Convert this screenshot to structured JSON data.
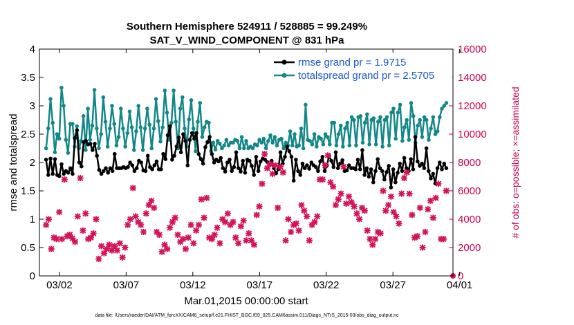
{
  "chart_data": {
    "type": "line",
    "title": "Southern Hemisphere 524911 / 528885 = 99.249%",
    "subtitle": "SAT_V_WIND_COMPONENT @ 831 hPa",
    "xlabel": "Mar.01,2015 00:00:00 start",
    "ylabel": "rmse and totalspread",
    "ylabel_right": "# of obs: o=possible; ×=assimilated",
    "footnote": "data file: /Users/raeder/DAI/ATM_forcXX/CAM6_setup/f.e21.FHIST_BGC.f09_025.CAM6assim.011/Diags_NTrS_2015-03/obs_diag_output.nc",
    "xlim": [
      0.5,
      31.5
    ],
    "ylim": [
      0,
      4
    ],
    "ylim_right": [
      0,
      16000
    ],
    "x_ticks": [
      2,
      7,
      12,
      17,
      22,
      27,
      32
    ],
    "x_tick_labels": [
      "03/02",
      "03/07",
      "03/12",
      "03/17",
      "03/22",
      "03/27",
      "04/01"
    ],
    "y_ticks": [
      0,
      0.5,
      1,
      1.5,
      2,
      2.5,
      3,
      3.5,
      4
    ],
    "y_tick_labels": [
      "0",
      "0.5",
      "1",
      "1.5",
      "2",
      "2.5",
      "3",
      "3.5",
      "4"
    ],
    "y_right_ticks": [
      0,
      2000,
      4000,
      6000,
      8000,
      10000,
      12000,
      14000,
      16000
    ],
    "y_right_tick_labels": [
      "0",
      "2000",
      "4000",
      "6000",
      "8000",
      "10000",
      "12000",
      "14000",
      "16000"
    ],
    "legend_position": "top-right",
    "series": [
      {
        "name": "rmse grand pr = 1.9715",
        "color": "#000000",
        "marker": "circle",
        "values": [
          2.05,
          1.78,
          2.07,
          1.8,
          2.06,
          1.78,
          1.76,
          1.97,
          1.8,
          1.85,
          1.82,
          1.9,
          1.8,
          2.43,
          2.57,
          2.0,
          1.93,
          2.36,
          2.38,
          2.32,
          2.33,
          2.22,
          2.33,
          2.12,
          1.87,
          1.8,
          1.85,
          1.9,
          1.82,
          1.9,
          1.85,
          2.15,
          1.9,
          1.9,
          1.9,
          1.92,
          1.9,
          1.92,
          2.0,
          1.95,
          1.85,
          1.9,
          2.03,
          2.0,
          1.86,
          1.85,
          2.12,
          1.92,
          1.88,
          1.95,
          2.02,
          1.88,
          1.88,
          2.15,
          2.06,
          2.48,
          2.64,
          2.05,
          2.12,
          2.28,
          2.44,
          2.18,
          2.5,
          2.38,
          1.95,
          2.4,
          2.52,
          2.42,
          2.52,
          2.15,
          2.06,
          1.98,
          2.27,
          2.36,
          2.45,
          2.15,
          2.0,
          2.05,
          2.02,
          2.08,
          1.9,
          1.84,
          2.0,
          2.05,
          1.85,
          1.92,
          2.18,
          1.9,
          1.84,
          2.03,
          1.82,
          2.05,
          2.03,
          1.94,
          1.78,
          2.1,
          1.85,
          2.02,
          2.07,
          2.05,
          2.01,
          1.95,
          2.03,
          1.9,
          1.81,
          1.88,
          2.18,
          1.98,
          2.1,
          2.28,
          2.2,
          2.1,
          1.68,
          2.05,
          1.85,
          1.78,
          1.98,
          1.9,
          1.95,
          1.89,
          2.0,
          1.95,
          1.92,
          1.85,
          2.02,
          2.1,
          1.85,
          1.95,
          2.12,
          2.03,
          1.92,
          2.18,
          1.9,
          1.98,
          2.04,
          1.85,
          1.86,
          1.95,
          1.9,
          1.9,
          1.88,
          2.05,
          1.88,
          2.22,
          1.78,
          1.9,
          1.75,
          1.88,
          1.65,
          1.85,
          2.06,
          1.9,
          1.85,
          1.7,
          1.83,
          1.94,
          1.56,
          1.88,
          1.65,
          1.82,
          1.98,
          1.85,
          2.08,
          1.9,
          1.85,
          2.06,
          1.88,
          2.45,
          2.02,
          1.94,
          1.98,
          1.9,
          2.25,
          1.85,
          1.72,
          1.8,
          1.63,
          1.9,
          2.0,
          1.88,
          1.98,
          1.9
        ]
      },
      {
        "name": "totalspread grand pr = 2.5705",
        "color": "#138787",
        "marker": "circle",
        "values": [
          2.25,
          2.6,
          3.12,
          2.7,
          2.18,
          2.5,
          2.42,
          3.32,
          3.0,
          2.4,
          2.17,
          2.68,
          2.68,
          2.28,
          2.64,
          2.25,
          2.38,
          2.82,
          2.22,
          2.95,
          2.4,
          2.65,
          3.28,
          2.6,
          2.25,
          2.5,
          3.15,
          2.72,
          2.28,
          2.6,
          3.0,
          2.68,
          2.3,
          2.45,
          2.95,
          2.6,
          2.28,
          2.52,
          2.9,
          2.62,
          2.22,
          2.55,
          3.0,
          2.62,
          2.22,
          2.6,
          2.95,
          2.67,
          2.25,
          2.6,
          3.12,
          2.73,
          2.37,
          2.62,
          3.27,
          2.88,
          2.4,
          2.7,
          3.27,
          2.72,
          2.25,
          2.95,
          3.15,
          2.6,
          2.28,
          2.76,
          3.1,
          2.6,
          2.2,
          2.72,
          3.05,
          2.45,
          2.62,
          2.72,
          2.7,
          2.2,
          2.35,
          2.23,
          2.38,
          2.33,
          2.25,
          2.3,
          2.4,
          2.3,
          2.35,
          2.35,
          2.4,
          2.38,
          2.25,
          2.45,
          2.25,
          2.38,
          2.25,
          2.28,
          2.25,
          2.32,
          2.3,
          2.4,
          2.35,
          2.42,
          2.25,
          2.38,
          2.48,
          2.35,
          2.45,
          2.3,
          2.4,
          2.42,
          2.25,
          2.35,
          2.3,
          2.55,
          2.3,
          2.5,
          2.28,
          2.3,
          2.6,
          2.25,
          3.02,
          2.4,
          2.38,
          2.32,
          2.5,
          2.28,
          2.45,
          2.42,
          2.32,
          2.5,
          2.45,
          2.32,
          2.7,
          2.7,
          2.3,
          2.5,
          2.65,
          2.28,
          2.6,
          2.7,
          2.3,
          2.8,
          2.75,
          2.3,
          2.8,
          2.82,
          2.35,
          2.7,
          2.85,
          2.32,
          2.75,
          2.78,
          2.32,
          2.72,
          2.8,
          2.28,
          2.75,
          2.8,
          2.3,
          2.88,
          2.95,
          2.42,
          2.88,
          3.02,
          2.38,
          2.62,
          2.75,
          2.4,
          3.05,
          2.82,
          2.35,
          2.65,
          2.75,
          2.45,
          2.8,
          2.75,
          2.4,
          2.6,
          2.8,
          2.5,
          2.55,
          2.8,
          2.95,
          3.0,
          3.05
        ]
      }
    ],
    "obs_possible_description": "o=possible",
    "obs_assimilated": {
      "name": "assimilated",
      "color": "#d4145a",
      "marker": "x",
      "values": [
        3600,
        4000,
        1900,
        2700,
        2600,
        4500,
        2600,
        6800,
        2800,
        2900,
        2650,
        2400,
        4200,
        6900,
        3200,
        4400,
        2600,
        2700,
        3000,
        4000,
        1200,
        2100,
        1600,
        1900,
        2200,
        1800,
        2100,
        1800,
        2300,
        1300,
        2000,
        3600,
        4000,
        6200,
        4200,
        3800,
        3600,
        3100,
        4400,
        5000,
        5300,
        4800,
        3100,
        2900,
        1700,
        2200,
        1900,
        3400,
        3800,
        4100,
        2900,
        2400,
        2600,
        1900,
        2700,
        3600,
        2300,
        3200,
        3600,
        5400,
        4100,
        5500,
        2700,
        2600,
        2900,
        3400,
        2300,
        4000,
        3800,
        4400,
        3600,
        3800,
        2700,
        2300,
        3500,
        3900,
        2500,
        3000,
        2500,
        2200,
        4300,
        4900,
        6500,
        8600,
        7600,
        7900,
        7200,
        7800,
        4800,
        7700,
        7300,
        2500,
        4000,
        3100,
        3600,
        3700,
        3200,
        5000,
        4600,
        4200,
        2500,
        3600,
        3800,
        4200,
        6800,
        6800,
        7800,
        8500,
        6600,
        6300,
        5000,
        5400,
        5800,
        7700,
        5100,
        5600,
        5200,
        4900,
        4400,
        4000,
        4800,
        4600,
        3200,
        2600,
        2200,
        2600,
        3100,
        3000,
        6000,
        4600,
        5000,
        5600,
        4500,
        4200,
        3700,
        5800,
        6900,
        7300,
        5800,
        4300,
        2700,
        2800,
        4800,
        2000,
        3100,
        4700,
        5300,
        4100,
        5500,
        6500,
        2600,
        2600,
        6000
      ]
    }
  }
}
